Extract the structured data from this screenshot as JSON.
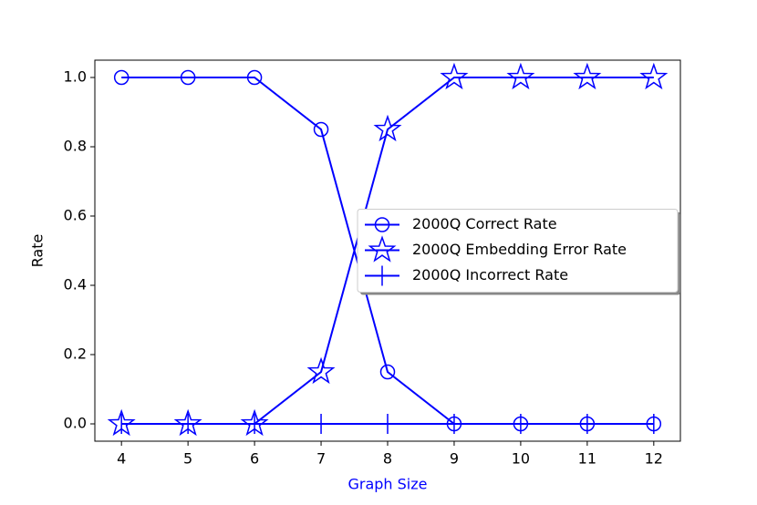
{
  "chart_data": {
    "type": "line",
    "xlabel": "Graph Size",
    "xlabel_color": "#0000ff",
    "ylabel": "Rate",
    "x": [
      4,
      5,
      6,
      7,
      8,
      9,
      10,
      11,
      12
    ],
    "series": [
      {
        "name": "2000Q Correct Rate",
        "color": "#0000ff",
        "marker": "circle",
        "values": [
          1,
          1,
          1,
          0.85,
          0.15,
          0,
          0,
          0,
          0
        ]
      },
      {
        "name": "2000Q Embedding Error Rate",
        "color": "#0000ff",
        "marker": "star",
        "values": [
          0,
          0,
          0,
          0.15,
          0.85,
          1,
          1,
          1,
          1
        ]
      },
      {
        "name": "2000Q Incorrect Rate",
        "color": "#0000ff",
        "marker": "vline",
        "values": [
          0,
          0,
          0,
          0,
          0,
          0,
          0,
          0,
          0
        ]
      }
    ],
    "xlim": [
      3.6,
      12.4
    ],
    "xticks": [
      4,
      5,
      6,
      7,
      8,
      9,
      10,
      11,
      12
    ],
    "ylim": [
      -0.05,
      1.05
    ],
    "yticks": [
      {
        "value": 0,
        "label": "0.0"
      },
      {
        "value": 0.2,
        "label": "0.2"
      },
      {
        "value": 0.4,
        "label": "0.4"
      },
      {
        "value": 0.6,
        "label": "0.6"
      },
      {
        "value": 0.8,
        "label": "0.8"
      },
      {
        "value": 1,
        "label": "1.0"
      }
    ],
    "legend": "center right"
  }
}
